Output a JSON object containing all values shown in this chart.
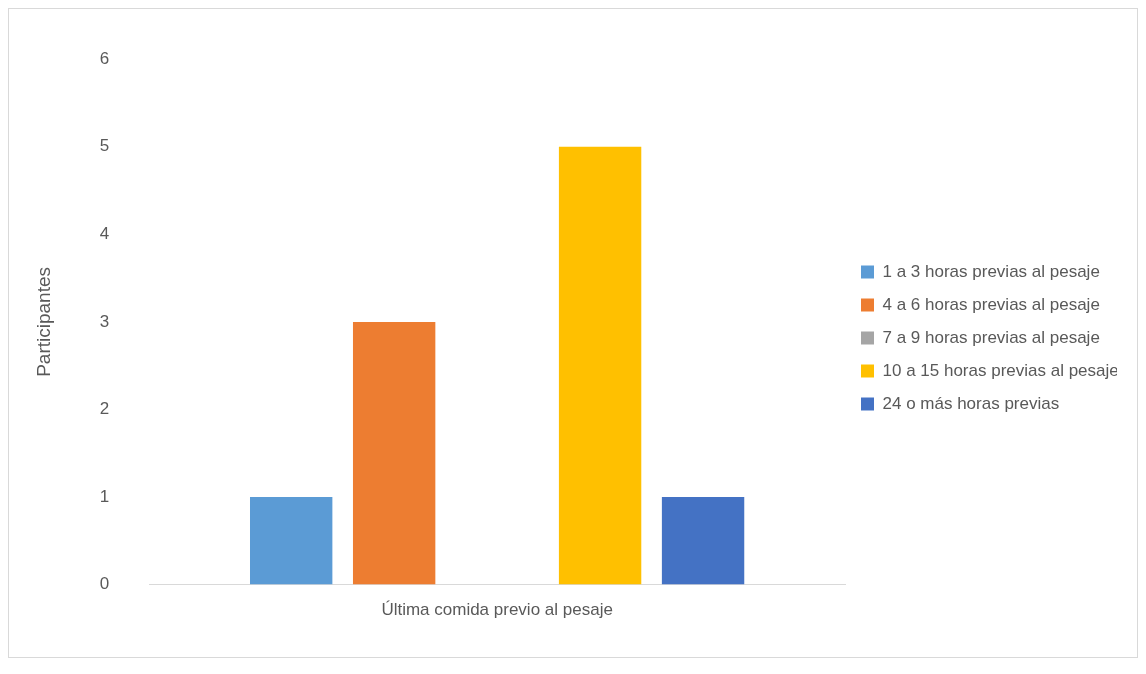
{
  "chart_data": {
    "type": "bar",
    "ylabel": "Participantes",
    "categories": [
      "Última comida previo al pesaje"
    ],
    "series": [
      {
        "name": "1 a 3 horas previas al pesaje",
        "color": "#5b9bd5",
        "values": [
          1
        ]
      },
      {
        "name": "4 a 6 horas previas al pesaje",
        "color": "#ed7d31",
        "values": [
          3
        ]
      },
      {
        "name": "7 a 9 horas previas al pesaje",
        "color": "#a5a5a5",
        "values": [
          0
        ]
      },
      {
        "name": "10 a 15 horas previas al pesaje",
        "color": "#ffc000",
        "values": [
          5
        ]
      },
      {
        "name": "24 o más horas previas",
        "color": "#4472c4",
        "values": [
          1
        ]
      }
    ],
    "ylim": [
      0,
      6
    ],
    "yticks": [
      0,
      1,
      2,
      3,
      4,
      5,
      6
    ],
    "grid": false,
    "legend": "right"
  }
}
